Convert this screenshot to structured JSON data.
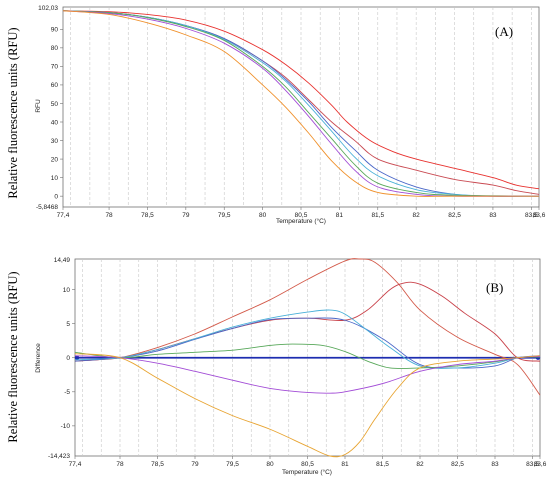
{
  "chart_data": [
    {
      "type": "line",
      "panel_label": "(A)",
      "outer_ylabel": "Relative fluorescence units (RFU)",
      "inner_ylabel": "RFU",
      "xlabel": "Temperature (°C)",
      "xlim": [
        77.4,
        83.6
      ],
      "ylim": [
        -5.8468,
        102.03
      ],
      "y_end_labels": [
        "102,03",
        "-5,8468"
      ],
      "x_tick_values": [
        77.4,
        78,
        78.5,
        79,
        79.5,
        80,
        80.5,
        81,
        81.5,
        82,
        82.5,
        83,
        83.5,
        83.6
      ],
      "x_tick_labels": [
        "77,4",
        "78",
        "78,5",
        "79",
        "79,5",
        "80",
        "80,5",
        "81",
        "81,5",
        "82",
        "82,5",
        "83",
        "83,5",
        "83,6"
      ],
      "y_tick_values": [
        0,
        10,
        20,
        30,
        40,
        50,
        60,
        70,
        80,
        90
      ],
      "y_tick_labels": [
        "0",
        "10",
        "20",
        "30",
        "40",
        "50",
        "60",
        "70",
        "80",
        "90"
      ],
      "grid": "vertical dashed",
      "series": [
        {
          "color": "#e8322f",
          "x": [
            77.4,
            78,
            78.5,
            79,
            79.5,
            80,
            80.3,
            80.6,
            80.9,
            81.1,
            81.4,
            81.7,
            82,
            82.5,
            83,
            83.3,
            83.6
          ],
          "y": [
            100,
            99.5,
            98,
            95,
            89,
            79,
            71,
            61,
            49,
            40,
            30,
            24,
            20,
            15,
            10,
            6,
            4
          ]
        },
        {
          "color": "#c94a52",
          "x": [
            77.4,
            78,
            78.5,
            79,
            79.5,
            80,
            80.3,
            80.6,
            80.9,
            81.2,
            81.5,
            82,
            82.5,
            83,
            83.3,
            83.6
          ],
          "y": [
            100,
            99,
            96.5,
            92,
            85,
            73,
            64,
            52,
            40,
            30,
            20,
            14,
            9,
            6,
            3,
            1
          ]
        },
        {
          "color": "#4a67c8",
          "x": [
            77.4,
            78,
            78.5,
            79,
            79.5,
            80,
            80.3,
            80.6,
            80.9,
            81.2,
            81.5,
            82,
            82.5,
            83,
            83.6
          ],
          "y": [
            100,
            99,
            96.5,
            92,
            85,
            73,
            63,
            51,
            37,
            25,
            14,
            5,
            1,
            0,
            0
          ]
        },
        {
          "color": "#4ab0d8",
          "x": [
            77.4,
            78,
            78.5,
            79,
            79.5,
            80,
            80.3,
            80.6,
            80.9,
            81.2,
            81.5,
            82,
            82.5,
            83,
            83.6
          ],
          "y": [
            100,
            99,
            96.5,
            92,
            84.5,
            72,
            62,
            49,
            35,
            21,
            11,
            3.5,
            1,
            0,
            0
          ]
        },
        {
          "color": "#58a85a",
          "x": [
            77.4,
            78,
            78.5,
            79,
            79.5,
            80,
            80.3,
            80.6,
            80.9,
            81.2,
            81.5,
            82,
            82.5,
            83.6
          ],
          "y": [
            100,
            99,
            96.3,
            91.5,
            84,
            70,
            59,
            45,
            31,
            17,
            7,
            2,
            0.5,
            0
          ]
        },
        {
          "color": "#a24cd6",
          "x": [
            77.4,
            78,
            78.5,
            79,
            79.5,
            80,
            80.3,
            80.6,
            80.9,
            81.2,
            81.5,
            82,
            82.5,
            83.6
          ],
          "y": [
            100,
            98.5,
            95.5,
            90.5,
            82.5,
            69,
            57,
            43,
            28,
            14,
            5,
            1,
            0,
            0
          ]
        },
        {
          "color": "#f0912c",
          "x": [
            77.4,
            78,
            78.5,
            79,
            79.5,
            80,
            80.3,
            80.6,
            80.9,
            81.2,
            81.5,
            82,
            82.5,
            83.6
          ],
          "y": [
            100,
            98,
            93.5,
            87,
            78,
            60,
            48,
            34,
            19,
            8,
            2,
            0,
            0,
            0
          ]
        }
      ]
    },
    {
      "type": "line",
      "panel_label": "(B)",
      "outer_ylabel": "Relative fluorescence units (RFU)",
      "inner_ylabel": "Difference",
      "xlabel": "Temperature (°C)",
      "xlim": [
        77.4,
        83.6
      ],
      "ylim": [
        -14.423,
        14.49
      ],
      "y_end_labels": [
        "14,49",
        "-14,423"
      ],
      "x_tick_values": [
        77.4,
        78,
        78.5,
        79,
        79.5,
        80,
        80.5,
        81,
        81.5,
        82,
        82.5,
        83,
        83.5,
        83.6
      ],
      "x_tick_labels": [
        "77,4",
        "78",
        "78,5",
        "79",
        "79,5",
        "80",
        "80,5",
        "81",
        "81,5",
        "82",
        "82,5",
        "83",
        "83,5",
        "83,6"
      ],
      "y_tick_values": [
        -10,
        -5,
        0,
        5,
        10
      ],
      "y_tick_labels": [
        "-10",
        "-5",
        "0",
        "5",
        "10"
      ],
      "grid": "vertical dashed",
      "series": [
        {
          "color": "#1d2db0",
          "x": [
            77.4,
            83.6
          ],
          "y": [
            0,
            0
          ]
        },
        {
          "color": "#d35a4a",
          "x": [
            77.4,
            77.7,
            78,
            78.5,
            79,
            79.5,
            80,
            80.5,
            81,
            81.2,
            81.4,
            81.7,
            82,
            82.5,
            83,
            83.3,
            83.6
          ],
          "y": [
            -0.5,
            -0.3,
            0,
            1.5,
            3.5,
            6,
            8.5,
            11.5,
            14.2,
            14.49,
            14,
            11,
            7,
            3,
            0.5,
            -1,
            -5.5
          ]
        },
        {
          "color": "#c9424a",
          "x": [
            77.4,
            78,
            78.5,
            79,
            79.5,
            80,
            80.5,
            81,
            81.3,
            81.6,
            81.8,
            82,
            82.3,
            82.6,
            83,
            83.3,
            83.6
          ],
          "y": [
            -0.5,
            0,
            1.2,
            2.8,
            4.3,
            5.5,
            5.8,
            5.5,
            7,
            10,
            11,
            10.8,
            9,
            6.5,
            3.5,
            0,
            -0.5
          ]
        },
        {
          "color": "#4a67c8",
          "x": [
            77.4,
            78,
            78.5,
            79,
            79.5,
            80,
            80.5,
            81,
            81.5,
            82,
            82.5,
            83,
            83.3,
            83.6
          ],
          "y": [
            -0.5,
            0,
            1,
            2.7,
            4.3,
            5.6,
            5.8,
            5.5,
            2.8,
            -1,
            -1.5,
            -1.2,
            0,
            0.3
          ]
        },
        {
          "color": "#4ab0d8",
          "x": [
            77.4,
            78,
            78.5,
            79,
            79.5,
            80,
            80.5,
            80.8,
            81,
            81.3,
            81.6,
            82,
            82.5,
            83,
            83.3,
            83.6
          ],
          "y": [
            -0.3,
            0,
            1.2,
            2.8,
            4.5,
            5.8,
            6.7,
            7,
            6.4,
            4,
            1.5,
            -1.2,
            -1.5,
            -0.8,
            0,
            0.2
          ]
        },
        {
          "color": "#58a85a",
          "x": [
            77.4,
            78,
            78.5,
            79,
            79.5,
            80,
            80.3,
            80.7,
            81,
            81.3,
            81.6,
            82,
            82.5,
            83,
            83.3,
            83.6
          ],
          "y": [
            0.8,
            0,
            0.5,
            0.8,
            1.1,
            1.8,
            2,
            1.8,
            0.9,
            -0.5,
            -1.5,
            -1.5,
            -1.2,
            -0.6,
            0,
            0.1
          ]
        },
        {
          "color": "#a24cd6",
          "x": [
            77.4,
            78,
            78.5,
            79,
            79.5,
            80,
            80.5,
            80.8,
            81,
            81.5,
            82,
            82.5,
            83,
            83.3,
            83.6
          ],
          "y": [
            0.3,
            0,
            -0.8,
            -2,
            -3.3,
            -4.5,
            -5.1,
            -5.2,
            -5,
            -3.8,
            -2,
            -1,
            -0.5,
            0,
            0.2
          ]
        },
        {
          "color": "#e8a431",
          "x": [
            77.4,
            78,
            78.5,
            79,
            79.5,
            80,
            80.5,
            80.8,
            81,
            81.2,
            81.4,
            81.7,
            82,
            82.5,
            83,
            83.3,
            83.6
          ],
          "y": [
            0.6,
            0,
            -3,
            -6,
            -8.5,
            -10.5,
            -13,
            -14.423,
            -14.2,
            -12.3,
            -9,
            -4.5,
            -1.5,
            -0.5,
            -0.2,
            0,
            0.3
          ]
        }
      ]
    }
  ]
}
